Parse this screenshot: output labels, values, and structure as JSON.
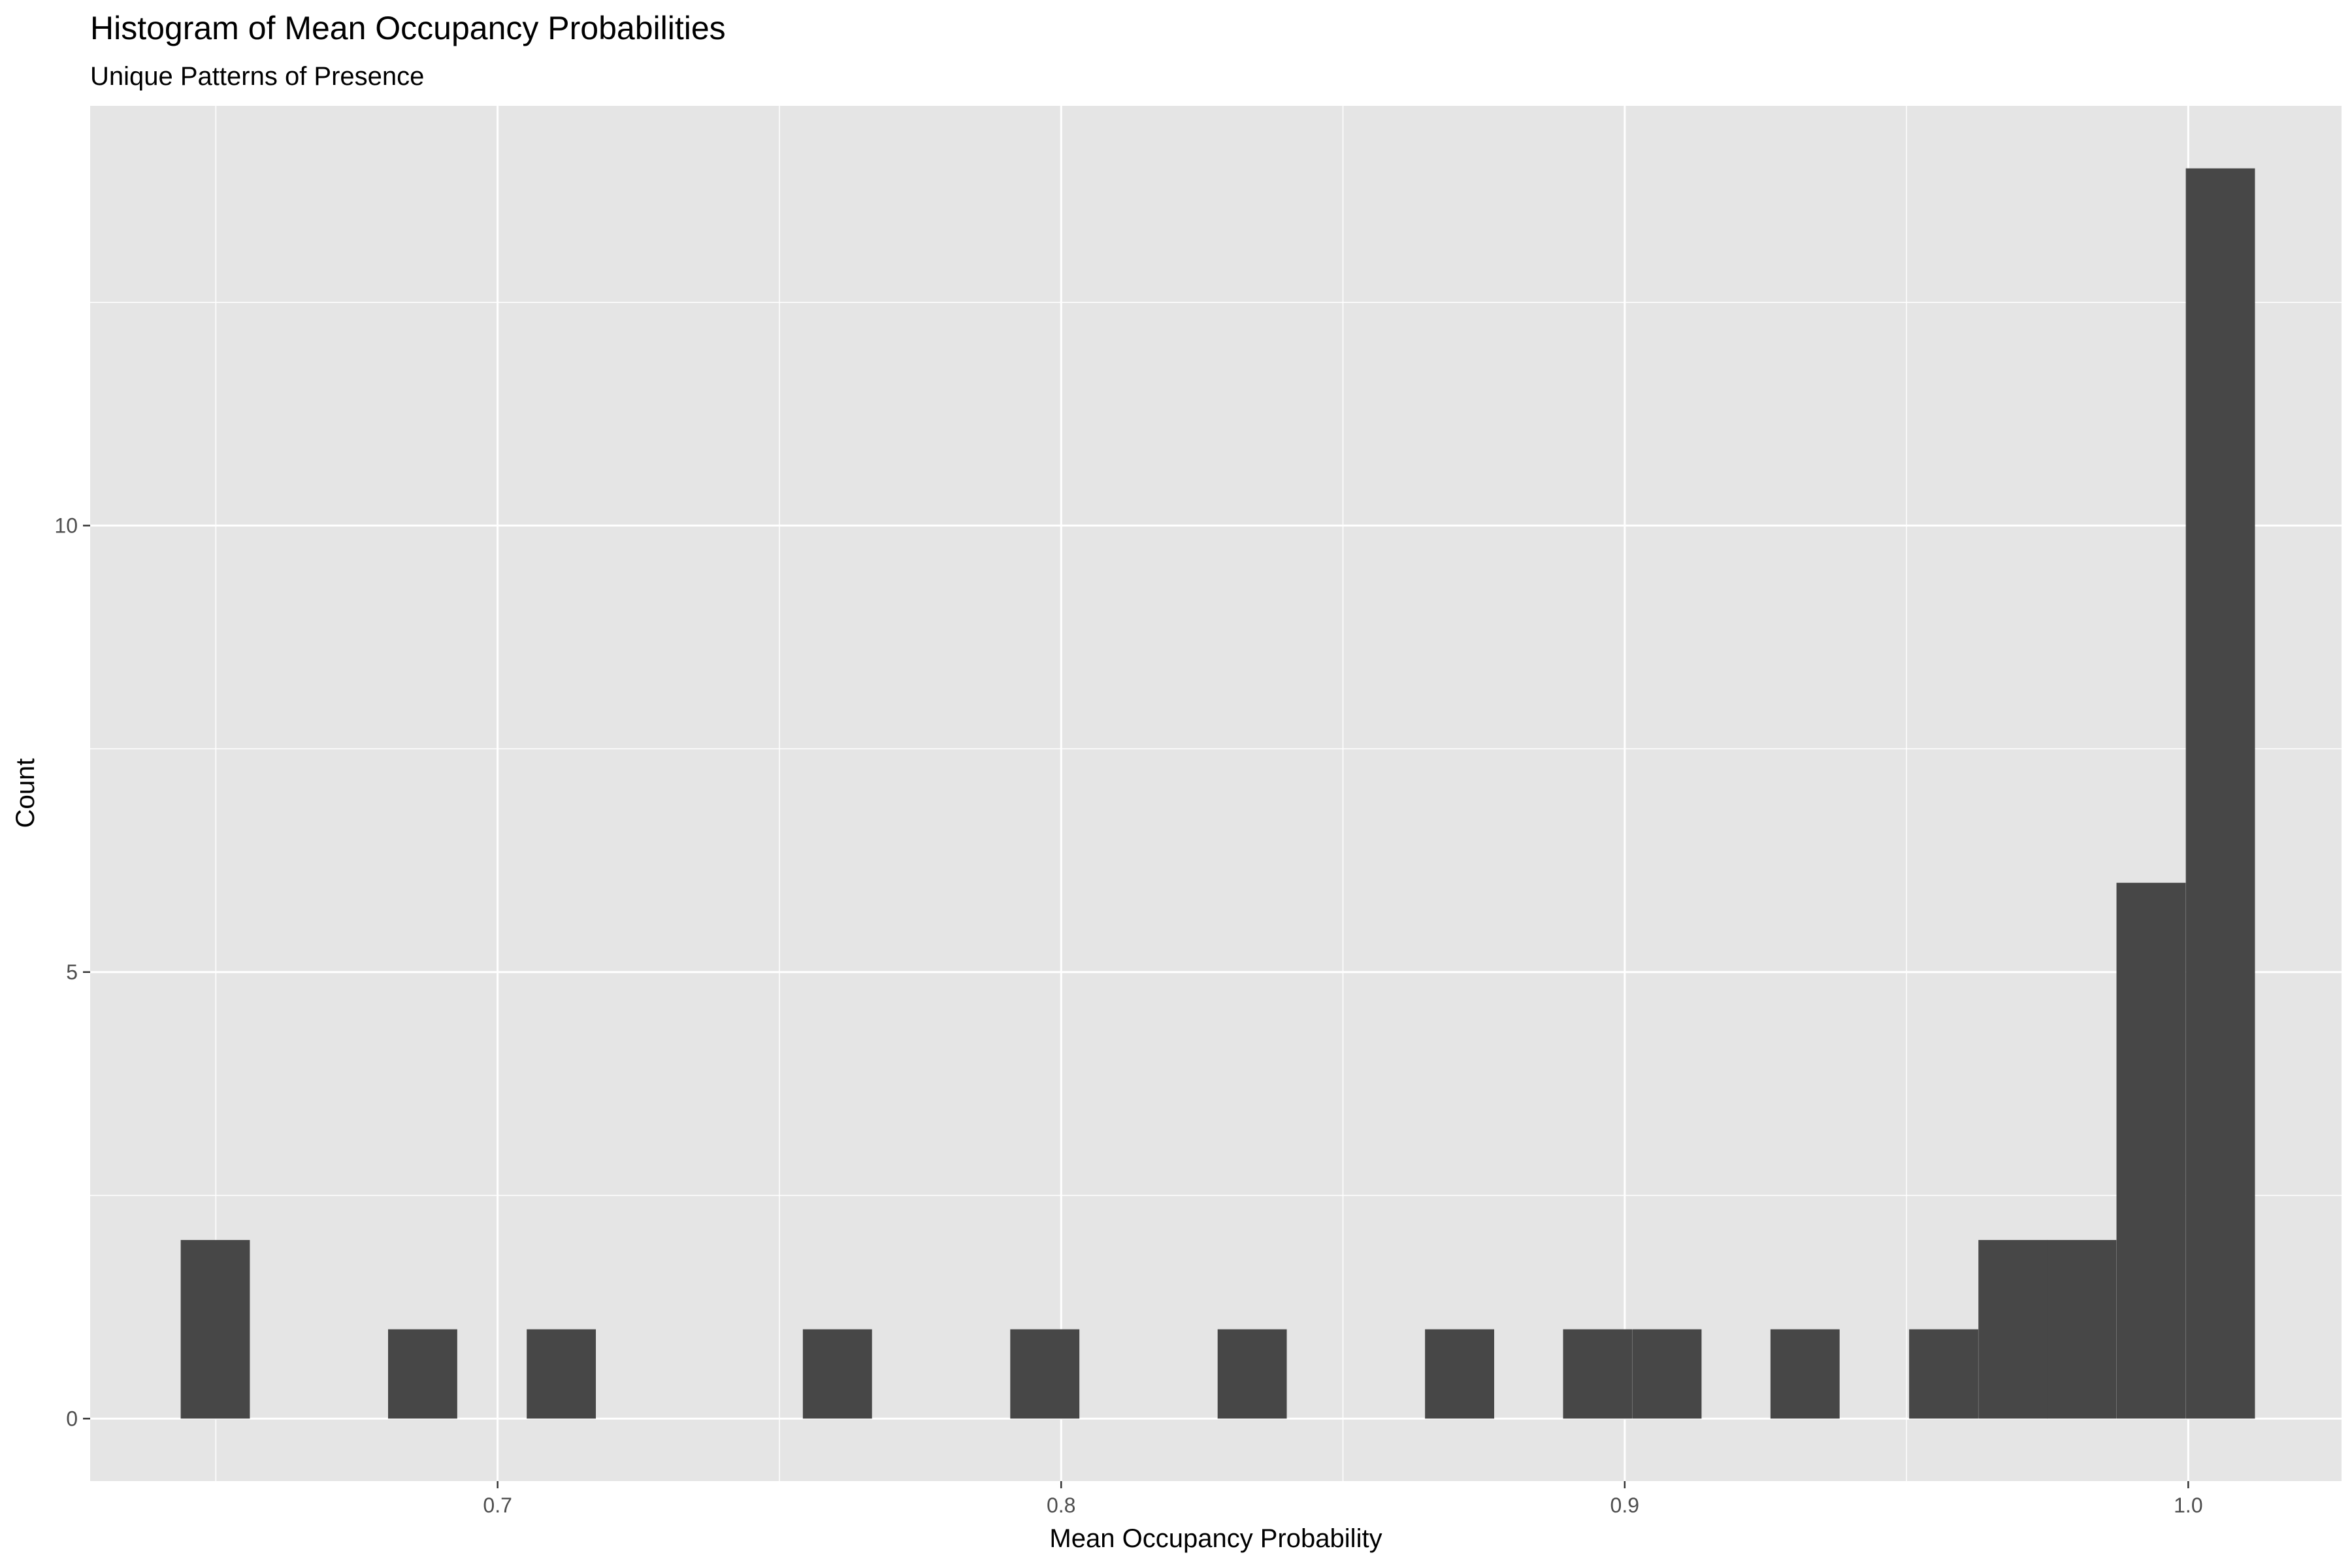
{
  "chart_data": {
    "type": "bar",
    "title": "Histogram of Mean Occupancy Probabilities",
    "subtitle": "Unique Patterns of Presence",
    "xlabel": "Mean Occupancy Probability",
    "ylabel": "Count",
    "xlim": [
      0.6277,
      1.0272
    ],
    "ylim": [
      -0.7,
      14.7
    ],
    "x_ticks": [
      {
        "value": 0.7,
        "label": "0.7"
      },
      {
        "value": 0.8,
        "label": "0.8"
      },
      {
        "value": 0.9,
        "label": "0.9"
      },
      {
        "value": 1.0,
        "label": "1.0"
      }
    ],
    "y_ticks": [
      {
        "value": 0,
        "label": "0"
      },
      {
        "value": 5,
        "label": "5"
      },
      {
        "value": 10,
        "label": "10"
      }
    ],
    "x_minor_gridlines": [
      0.65,
      0.75,
      0.85,
      0.95
    ],
    "y_minor_gridlines": [
      2.5,
      7.5,
      12.5
    ],
    "bin_width": 0.01227,
    "bins": [
      {
        "center": 0.6499,
        "count": 2
      },
      {
        "center": 0.6867,
        "count": 1
      },
      {
        "center": 0.7113,
        "count": 1
      },
      {
        "center": 0.7603,
        "count": 1
      },
      {
        "center": 0.7971,
        "count": 1
      },
      {
        "center": 0.8339,
        "count": 1
      },
      {
        "center": 0.8707,
        "count": 1
      },
      {
        "center": 0.8952,
        "count": 1
      },
      {
        "center": 0.9075,
        "count": 1
      },
      {
        "center": 0.932,
        "count": 1
      },
      {
        "center": 0.9566,
        "count": 1
      },
      {
        "center": 0.9689,
        "count": 2
      },
      {
        "center": 0.9811,
        "count": 2
      },
      {
        "center": 0.9934,
        "count": 6
      },
      {
        "center": 1.0057,
        "count": 14
      }
    ],
    "grid": true,
    "colors": {
      "panel_background": "#e5e5e5",
      "grid_line": "#ffffff",
      "bar_fill": "#474747",
      "tick_label": "#4d4d4d",
      "tick_mark": "#333333"
    }
  }
}
